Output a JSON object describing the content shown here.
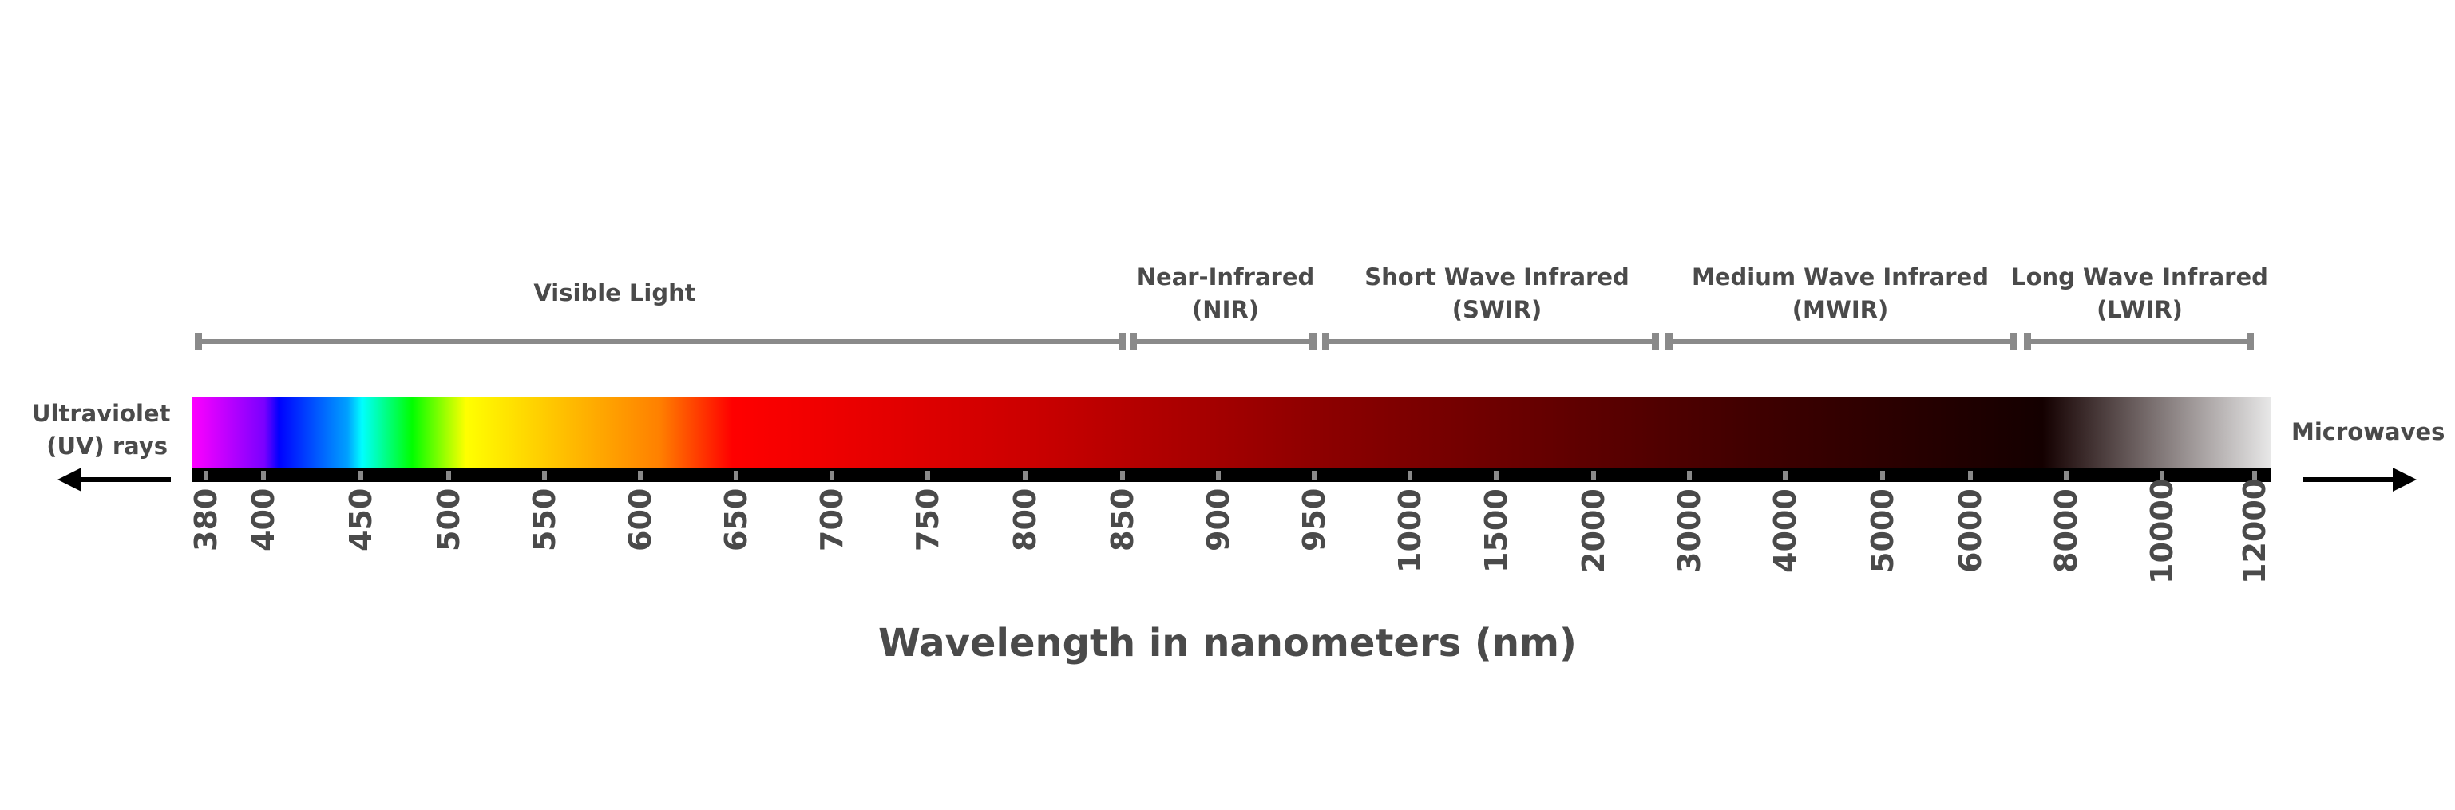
{
  "bands": [
    {
      "id": "visible",
      "lines": [
        "Visible Light"
      ]
    },
    {
      "id": "nir",
      "lines": [
        "Near-Infrared",
        "(NIR)"
      ]
    },
    {
      "id": "swir",
      "lines": [
        "Short Wave Infrared",
        "(SWIR)"
      ]
    },
    {
      "id": "mwir",
      "lines": [
        "Medium Wave Infrared",
        "(MWIR)"
      ]
    },
    {
      "id": "lwir",
      "lines": [
        "Long Wave Infrared",
        "(LWIR)"
      ]
    }
  ],
  "ticks": [
    "380",
    "400",
    "450",
    "500",
    "550",
    "600",
    "650",
    "700",
    "750",
    "800",
    "850",
    "900",
    "950",
    "1000",
    "1500",
    "2000",
    "3000",
    "4000",
    "5000",
    "6000",
    "8000",
    "10000",
    "12000"
  ],
  "left_label": [
    "Ultraviolet",
    "(UV) rays"
  ],
  "right_label": "Microwaves",
  "axis_title": "Wavelength in nanometers (nm)",
  "colors": {
    "text": "#4a4a4a",
    "bracket": "#8a8a8a",
    "tick_strip": "#000000",
    "gradient_stops": [
      "#ff00ff",
      "#7a00ff",
      "#0000ff",
      "#00a0ff",
      "#00ffff",
      "#00ff00",
      "#ffff00",
      "#ff8000",
      "#ff0000",
      "#cc0000",
      "#8a0000",
      "#400000",
      "#140000",
      "#e8e8e8"
    ]
  }
}
